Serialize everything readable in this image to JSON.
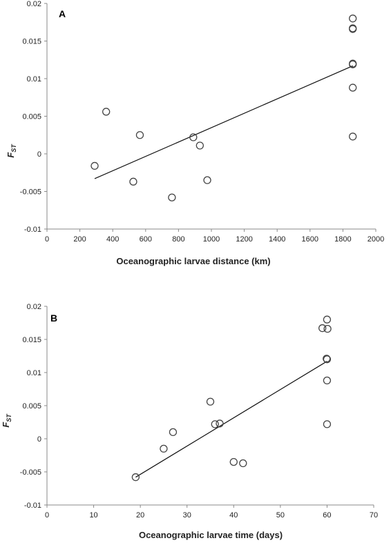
{
  "chart_data": [
    {
      "type": "scatter",
      "panel_label": "A",
      "xlabel": "Oceanographic larvae distance (km)",
      "ylabel_main": "F",
      "ylabel_sub": "ST",
      "xlim": [
        0,
        2000
      ],
      "ylim": [
        -0.01,
        0.02
      ],
      "x_ticks": [
        0,
        200,
        400,
        600,
        800,
        1000,
        1200,
        1400,
        1600,
        1800,
        2000
      ],
      "y_ticks": [
        -0.01,
        -0.005,
        0,
        0.005,
        0.01,
        0.015,
        0.02
      ],
      "x_tick_labels": [
        "0",
        "200",
        "400",
        "600",
        "800",
        "1000",
        "1200",
        "1400",
        "1600",
        "1800",
        "2000"
      ],
      "y_tick_labels": [
        "-0.01",
        "-0.005",
        "0",
        "0.005",
        "0.01",
        "0.015",
        "0.02"
      ],
      "grid": false,
      "points": [
        {
          "x": 290,
          "y": -0.0016
        },
        {
          "x": 360,
          "y": 0.0056
        },
        {
          "x": 525,
          "y": -0.0037
        },
        {
          "x": 565,
          "y": 0.0025
        },
        {
          "x": 760,
          "y": -0.0058
        },
        {
          "x": 890,
          "y": 0.0022
        },
        {
          "x": 930,
          "y": 0.0011
        },
        {
          "x": 975,
          "y": -0.0035
        },
        {
          "x": 1860,
          "y": 0.018
        },
        {
          "x": 1860,
          "y": 0.0167
        },
        {
          "x": 1860,
          "y": 0.0166
        },
        {
          "x": 1860,
          "y": 0.012
        },
        {
          "x": 1860,
          "y": 0.0119
        },
        {
          "x": 1860,
          "y": 0.0088
        },
        {
          "x": 1860,
          "y": 0.0023
        }
      ],
      "trendline": {
        "x": [
          290,
          1860
        ],
        "y": [
          -0.0033,
          0.0117
        ]
      }
    },
    {
      "type": "scatter",
      "panel_label": "B",
      "xlabel": "Oceanographic larvae time (days)",
      "ylabel_main": "F",
      "ylabel_sub": "ST",
      "xlim": [
        0,
        70
      ],
      "ylim": [
        -0.01,
        0.02
      ],
      "x_ticks": [
        0,
        10,
        20,
        30,
        40,
        50,
        60,
        70
      ],
      "y_ticks": [
        -0.01,
        -0.005,
        0,
        0.005,
        0.01,
        0.015,
        0.02
      ],
      "x_tick_labels": [
        "0",
        "10",
        "20",
        "30",
        "40",
        "50",
        "60",
        "70"
      ],
      "y_tick_labels": [
        "-0.01",
        "-0.005",
        "0",
        "0.005",
        "0.01",
        "0.015",
        "0.02"
      ],
      "grid": false,
      "points": [
        {
          "x": 19,
          "y": -0.0058
        },
        {
          "x": 25,
          "y": -0.0015
        },
        {
          "x": 27,
          "y": 0.001
        },
        {
          "x": 35,
          "y": 0.0056
        },
        {
          "x": 36,
          "y": 0.0022
        },
        {
          "x": 37,
          "y": 0.0023
        },
        {
          "x": 40,
          "y": -0.0035
        },
        {
          "x": 42,
          "y": -0.0037
        },
        {
          "x": 59,
          "y": 0.0167
        },
        {
          "x": 60,
          "y": 0.018
        },
        {
          "x": 60.1,
          "y": 0.0166
        },
        {
          "x": 60,
          "y": 0.012
        },
        {
          "x": 59.9,
          "y": 0.0121
        },
        {
          "x": 60,
          "y": 0.0088
        },
        {
          "x": 60,
          "y": 0.0022
        }
      ],
      "trendline": {
        "x": [
          19,
          60
        ],
        "y": [
          -0.0058,
          0.0117
        ]
      }
    }
  ]
}
